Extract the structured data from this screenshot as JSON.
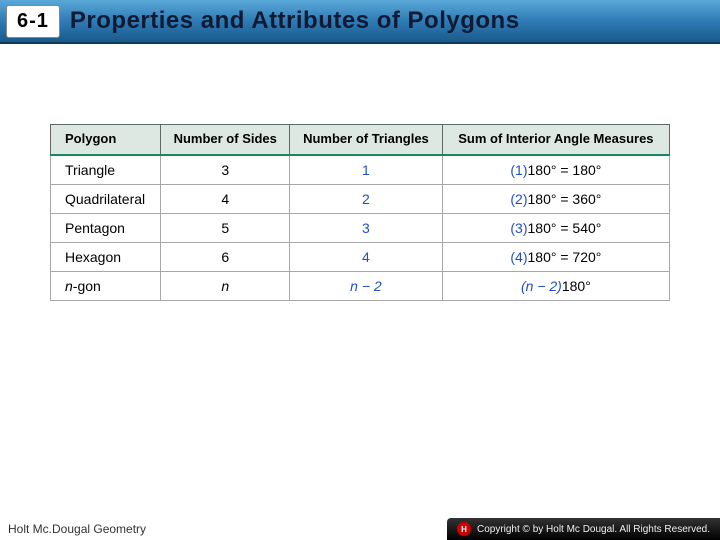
{
  "header": {
    "section": "6-1",
    "title": "Properties and Attributes of Polygons"
  },
  "table": {
    "header_bg": "#dde8e2",
    "border_color": "#a8a8a8",
    "accent_border": "#1a8a5a",
    "blue_color": "#2050c0",
    "columns": [
      "Polygon",
      "Number of Sides",
      "Number of Triangles",
      "Sum of Interior Angle Measures"
    ],
    "rows": [
      {
        "polygon": "Triangle",
        "sides": "3",
        "triangles": "1",
        "coef": "(1)",
        "sum": "180° = 180°"
      },
      {
        "polygon": "Quadrilateral",
        "sides": "4",
        "triangles": "2",
        "coef": "(2)",
        "sum": "180° = 360°"
      },
      {
        "polygon": "Pentagon",
        "sides": "5",
        "triangles": "3",
        "coef": "(3)",
        "sum": "180° = 540°"
      },
      {
        "polygon": "Hexagon",
        "sides": "6",
        "triangles": "4",
        "coef": "(4)",
        "sum": "180° = 720°"
      },
      {
        "polygon": "n-gon",
        "sides": "n",
        "triangles": "n − 2",
        "coef": "(n − 2)",
        "sum": "180°",
        "italic": true
      }
    ]
  },
  "footer": {
    "left": "Holt Mc.Dougal Geometry",
    "right": "Copyright © by Holt Mc Dougal. All Rights Reserved."
  }
}
